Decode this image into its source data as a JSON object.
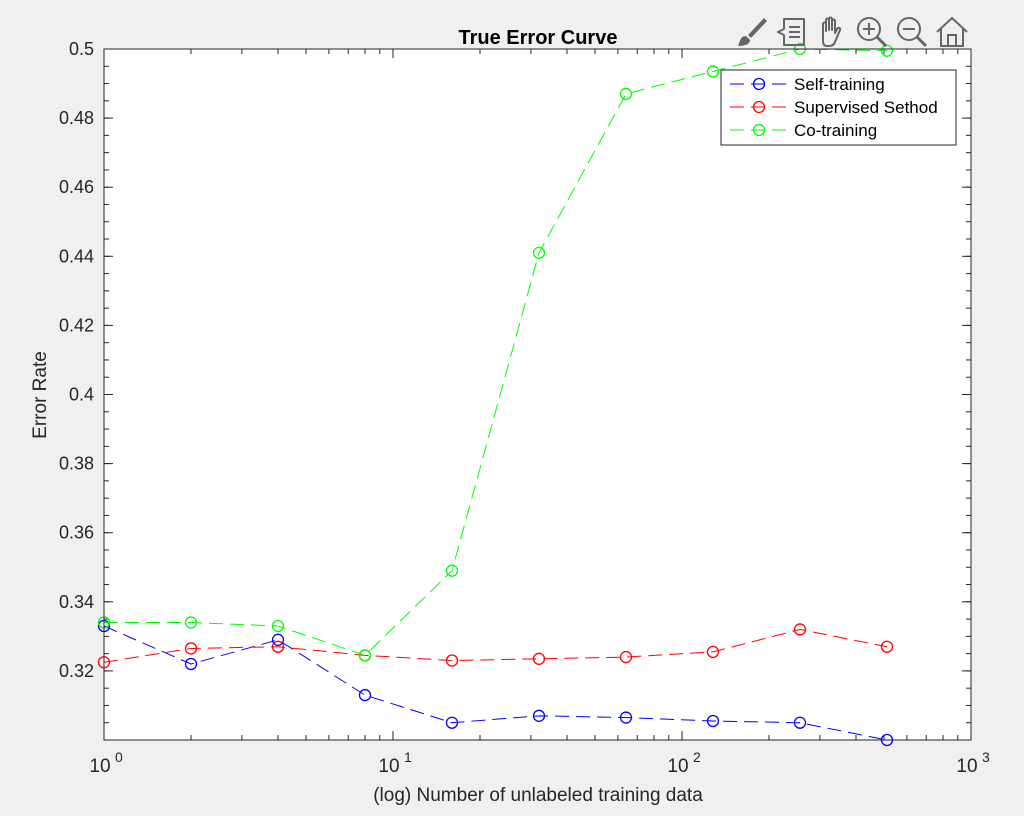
{
  "toolbar": {
    "buttons": [
      {
        "name": "brush-icon"
      },
      {
        "name": "data-tips-icon"
      },
      {
        "name": "pan-hand-icon"
      },
      {
        "name": "zoom-in-icon"
      },
      {
        "name": "zoom-out-icon"
      },
      {
        "name": "home-icon"
      }
    ]
  },
  "chart_data": {
    "type": "line",
    "title": "True Error Curve",
    "xlabel": "(log) Number of unlabeled training data",
    "ylabel": "Error Rate",
    "xscale": "log",
    "xlim": [
      1,
      1000
    ],
    "ylim": [
      0.3,
      0.5
    ],
    "xticks": [
      {
        "value": 1,
        "base": "10",
        "exp": "0"
      },
      {
        "value": 10,
        "base": "10",
        "exp": "1"
      },
      {
        "value": 100,
        "base": "10",
        "exp": "2"
      },
      {
        "value": 1000,
        "base": "10",
        "exp": "3"
      }
    ],
    "yticks": [
      "0.32",
      "0.34",
      "0.36",
      "0.38",
      "0.4",
      "0.42",
      "0.44",
      "0.46",
      "0.48",
      "0.5"
    ],
    "legend_position": "top-right",
    "grid": false,
    "series": [
      {
        "name": "Self-training",
        "color": "#0000ff",
        "line_style": "dashed",
        "marker": "circle",
        "x": [
          1,
          2,
          4,
          8,
          16,
          32,
          64,
          128,
          256,
          512
        ],
        "y": [
          0.333,
          0.322,
          0.329,
          0.313,
          0.305,
          0.307,
          0.3065,
          0.3055,
          0.305,
          0.3
        ]
      },
      {
        "name": "Supervised Sethod",
        "color": "#ff0000",
        "line_style": "dashed",
        "marker": "circle",
        "x": [
          1,
          2,
          4,
          8,
          16,
          32,
          64,
          128,
          256,
          512
        ],
        "y": [
          0.3225,
          0.3265,
          0.327,
          0.3245,
          0.323,
          0.3235,
          0.324,
          0.3255,
          0.332,
          0.327
        ]
      },
      {
        "name": "Co-training",
        "color": "#00ff00",
        "line_style": "dashed",
        "marker": "circle",
        "x": [
          1,
          2,
          4,
          8,
          16,
          32,
          64,
          128,
          256,
          512
        ],
        "y": [
          0.334,
          0.334,
          0.333,
          0.3245,
          0.349,
          0.441,
          0.487,
          0.4935,
          0.5,
          0.4995
        ]
      }
    ]
  }
}
